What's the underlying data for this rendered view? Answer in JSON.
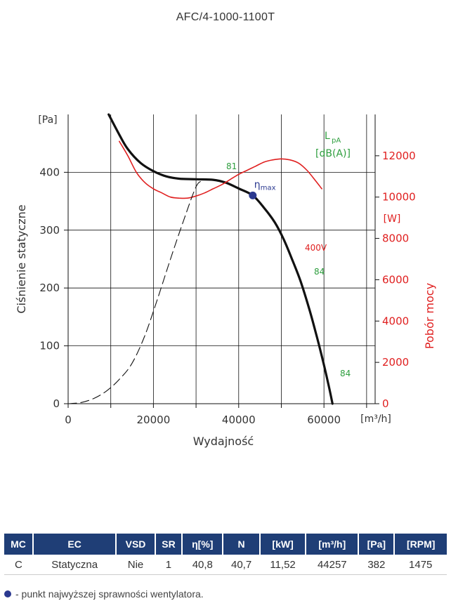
{
  "title": "AFC/4-1000-1100T",
  "chart_data": {
    "type": "line",
    "xlabel": "Wydajność",
    "xunit": "[m³/h]",
    "ylabel": "Ciśnienie statyczne",
    "yunit": "[Pa]",
    "y2label": "Pobór mocy",
    "y2unit": "[W]",
    "xlim": [
      0,
      72000
    ],
    "ylim": [
      0,
      500
    ],
    "y2lim": [
      0,
      14000
    ],
    "xticks": [
      "0",
      "20000",
      "40000",
      "60000"
    ],
    "xtick_values": [
      0,
      20000,
      40000,
      60000
    ],
    "yticks": [
      "0",
      "100",
      "200",
      "300",
      "400"
    ],
    "ytick_values": [
      0,
      100,
      200,
      300,
      400
    ],
    "y2ticks": [
      "0",
      "2000",
      "4000",
      "6000",
      "8000",
      "10000",
      "12000"
    ],
    "y2tick_values": [
      0,
      2000,
      4000,
      6000,
      8000,
      10000,
      12000
    ],
    "grid": true,
    "series": [
      {
        "role": "pressure",
        "axis": "left",
        "color": "#111111",
        "style": "solid",
        "x": [
          9500,
          12000,
          14000,
          17000,
          20000,
          23000,
          26000,
          30000,
          34000,
          37000,
          40000,
          43300,
          46000,
          48500,
          50500,
          52500,
          54500,
          56500,
          58000,
          59500,
          61000,
          62000
        ],
        "y": [
          500,
          465,
          440,
          416,
          402,
          393,
          389,
          388,
          387,
          382,
          372,
          360,
          338,
          313,
          285,
          250,
          212,
          165,
          125,
          82,
          35,
          0
        ]
      },
      {
        "role": "power",
        "axis": "right",
        "color": "#e02020",
        "style": "solid",
        "x": [
          12000,
          14000,
          16000,
          18000,
          20000,
          22000,
          24000,
          26000,
          28000,
          30000,
          32000,
          34000,
          36000,
          38000,
          40000,
          42000,
          44000,
          46000,
          48000,
          50000,
          52000,
          54000,
          56000,
          58000,
          59500
        ],
        "y": [
          12700,
          12000,
          11200,
          10700,
          10400,
          10200,
          10000,
          9950,
          9950,
          10050,
          10200,
          10400,
          10600,
          10850,
          11100,
          11300,
          11500,
          11700,
          11800,
          11850,
          11800,
          11650,
          11300,
          10800,
          10400
        ]
      },
      {
        "role": "system",
        "axis": "left",
        "color": "#111111",
        "style": "dashed",
        "x": [
          0,
          3000,
          6000,
          9000,
          12000,
          15000,
          18000,
          21000,
          24000,
          27000,
          30000,
          31500
        ],
        "y": [
          0,
          2,
          9,
          22,
          42,
          70,
          118,
          182,
          250,
          315,
          375,
          385
        ]
      }
    ],
    "annotations": {
      "noise_header": [
        "L",
        "pA",
        "[dB(A)]"
      ],
      "noise_labels": [
        "81",
        "84",
        "84"
      ],
      "voltage_label": "400V",
      "eta_symbol": "η",
      "eta_sub": "max",
      "eta_point": {
        "x": 43300,
        "y": 360
      }
    },
    "colors": {
      "noise": "#2e9e3e",
      "power": "#e02020",
      "eta_marker": "#2b3990",
      "grid": "#111111"
    }
  },
  "table": {
    "headers": [
      "MC",
      "EC",
      "VSD",
      "SR",
      "η[%]",
      "N",
      "[kW]",
      "[m³/h]",
      "[Pa]",
      "[RPM]"
    ],
    "row": [
      "C",
      "Statyczna",
      "Nie",
      "1",
      "40,8",
      "40,7",
      "11,52",
      "44257",
      "382",
      "1475"
    ]
  },
  "footnote": "- punkt najwyższej sprawności wentylatora."
}
